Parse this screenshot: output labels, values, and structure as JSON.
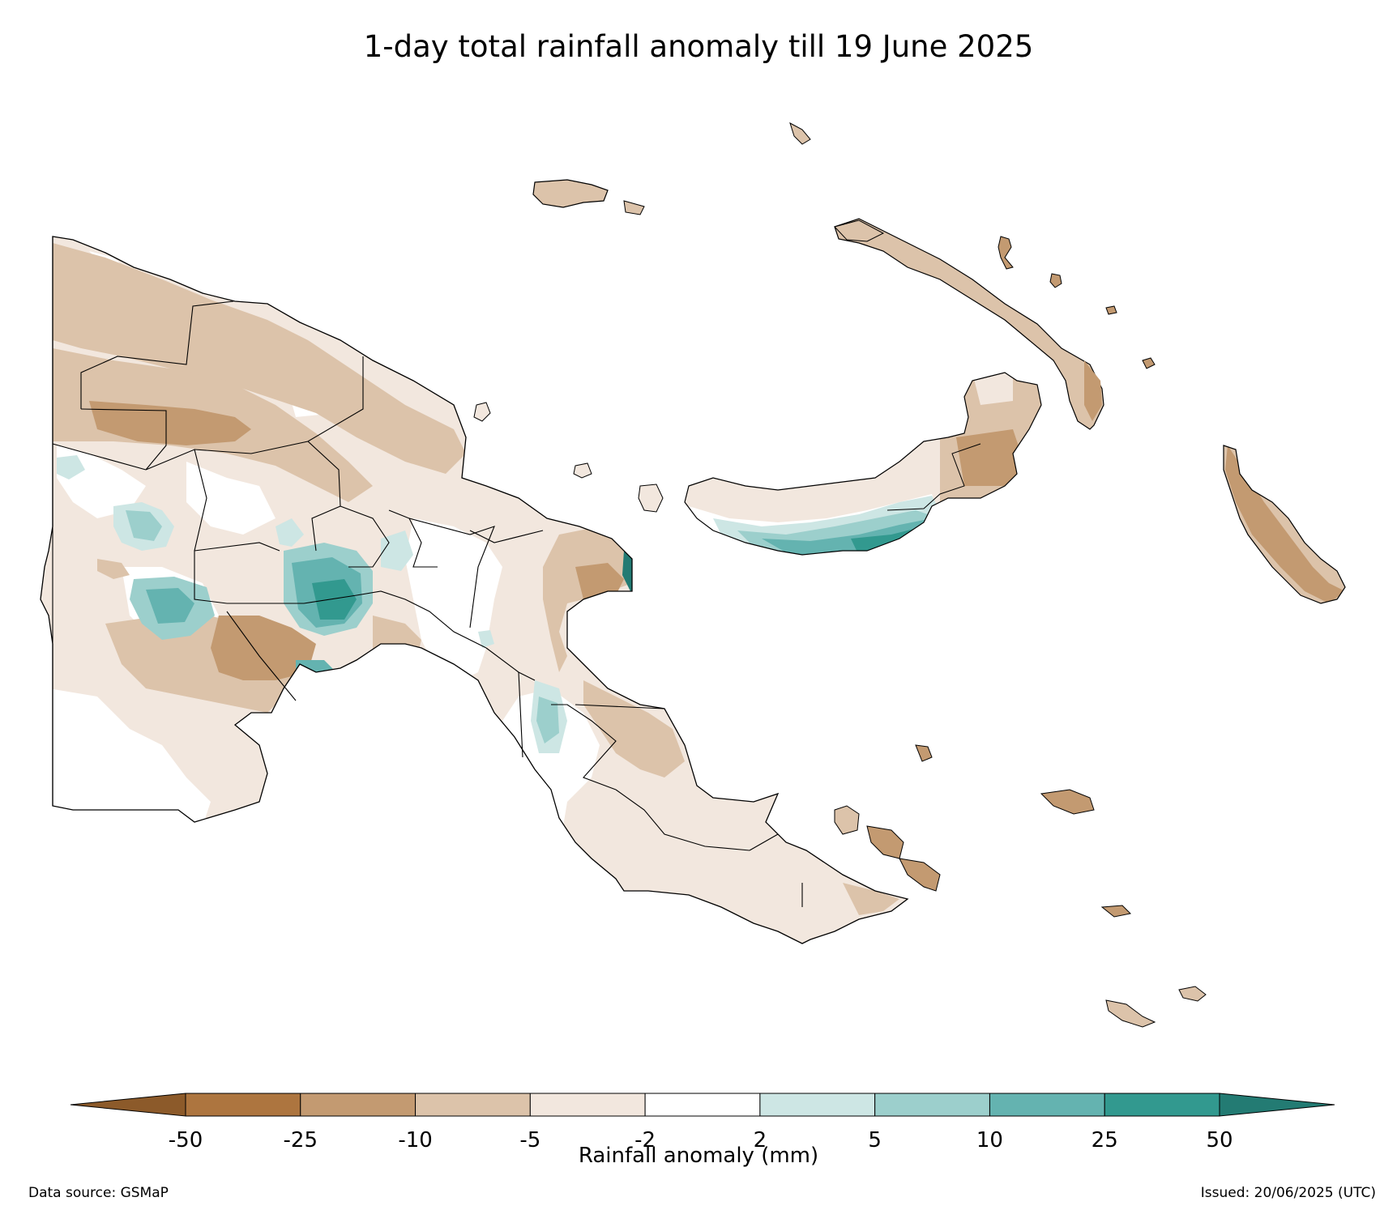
{
  "title": "1-day total rainfall anomaly till 19 June 2025",
  "colorbar": {
    "label": "Rainfall anomaly (mm)",
    "ticks": [
      "-50",
      "-25",
      "-10",
      "-5",
      "-2",
      "2",
      "5",
      "10",
      "25",
      "50"
    ],
    "bins": [
      {
        "range": "< -50",
        "color": "#8c5a2a"
      },
      {
        "range": "-50 to -25",
        "color": "#ad753f"
      },
      {
        "range": "-25 to -10",
        "color": "#c39a71"
      },
      {
        "range": "-10 to -5",
        "color": "#dcc3aa"
      },
      {
        "range": "-5 to -2",
        "color": "#f2e7de"
      },
      {
        "range": "-2 to 2",
        "color": "#ffffff"
      },
      {
        "range": "2 to 5",
        "color": "#cde6e4"
      },
      {
        "range": "5 to 10",
        "color": "#9ccfcc"
      },
      {
        "range": "10 to 25",
        "color": "#64b3b0"
      },
      {
        "range": "25 to 50",
        "color": "#32998f"
      },
      {
        "range": "> 50",
        "color": "#237b73"
      }
    ]
  },
  "footer": {
    "source": "Data source: GSMaP",
    "issued": "Issued: 20/06/2025 (UTC)"
  }
}
